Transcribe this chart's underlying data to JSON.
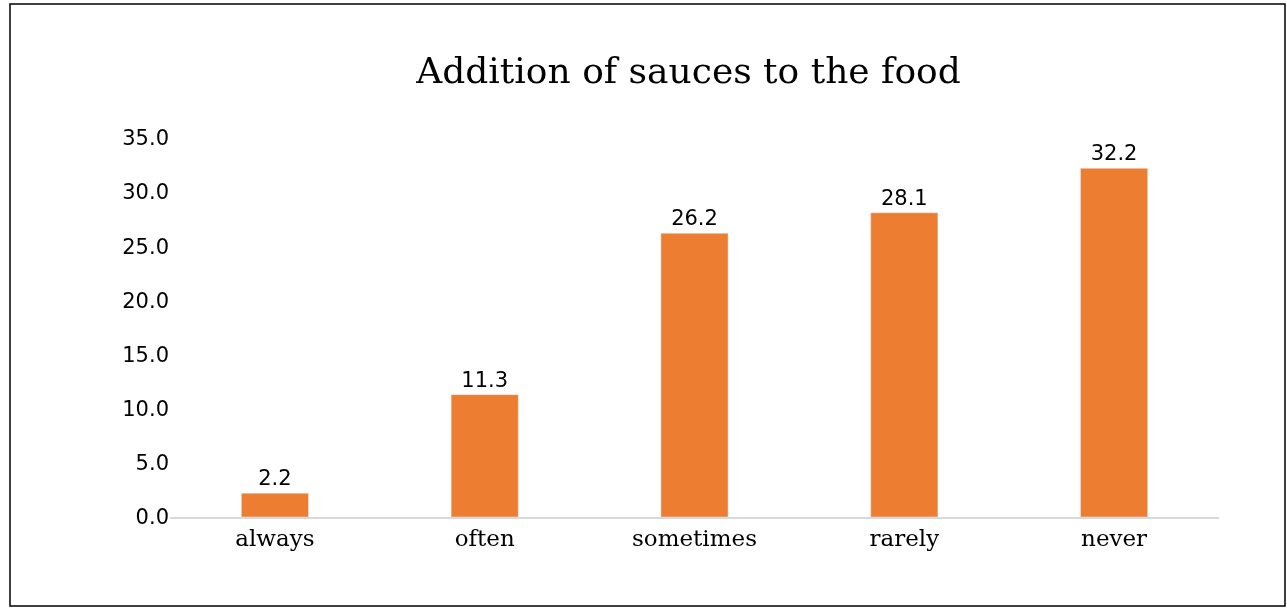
{
  "chart_data": {
    "type": "bar",
    "title": "Addition of sauces to the food",
    "categories": [
      "always",
      "often",
      "sometimes",
      "rarely",
      "never"
    ],
    "values": [
      2.2,
      11.3,
      26.2,
      28.1,
      32.2
    ],
    "color": "#ed7d31",
    "ylim": [
      0,
      35
    ],
    "yticks": [
      {
        "value": 0,
        "label": "0.0"
      },
      {
        "value": 5,
        "label": "5.0"
      },
      {
        "value": 10,
        "label": "10.0"
      },
      {
        "value": 15,
        "label": "15.0"
      },
      {
        "value": 20,
        "label": "20.0"
      },
      {
        "value": 25,
        "label": "25.0"
      },
      {
        "value": 30,
        "label": "30.0"
      },
      {
        "value": 35,
        "label": "35.0"
      }
    ],
    "data_labels": true
  }
}
